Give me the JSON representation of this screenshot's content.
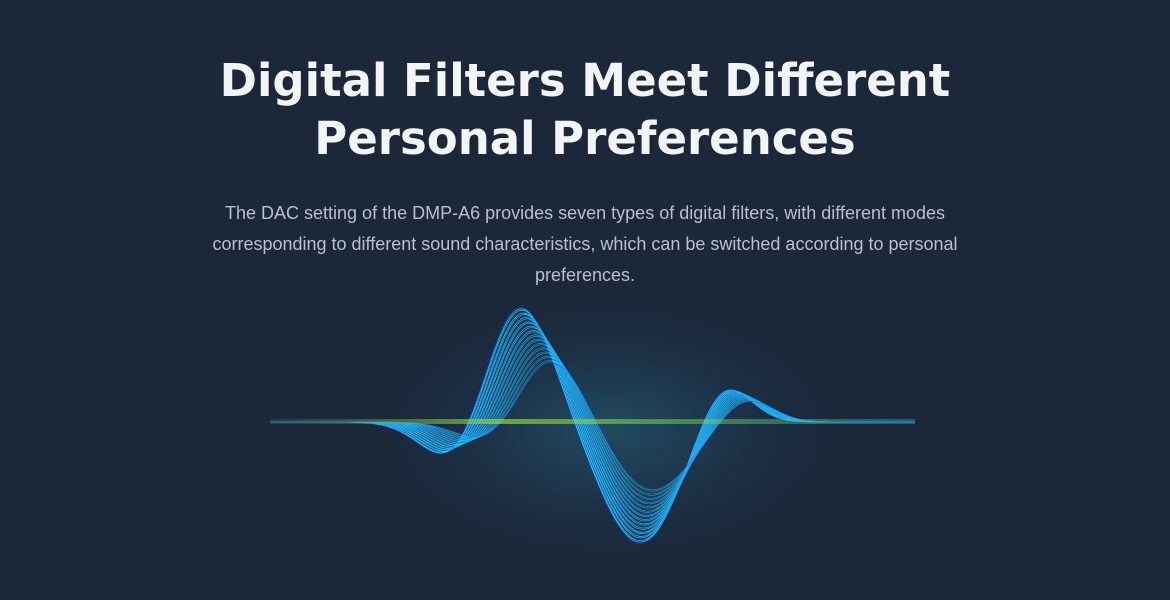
{
  "section": {
    "title_line1": "Digital Filters Meet Different",
    "title_line2": "Personal Preferences",
    "description": "The DAC setting of the DMP-A6 provides seven types of digital filters, with different modes corresponding to different sound characteristics, which can be switched according to personal preferences."
  },
  "colors": {
    "background": "#1c2739",
    "wave_cyan": "#2ee6e6",
    "wave_blue": "#1030ff",
    "baseline_glow": "#9be04a"
  }
}
